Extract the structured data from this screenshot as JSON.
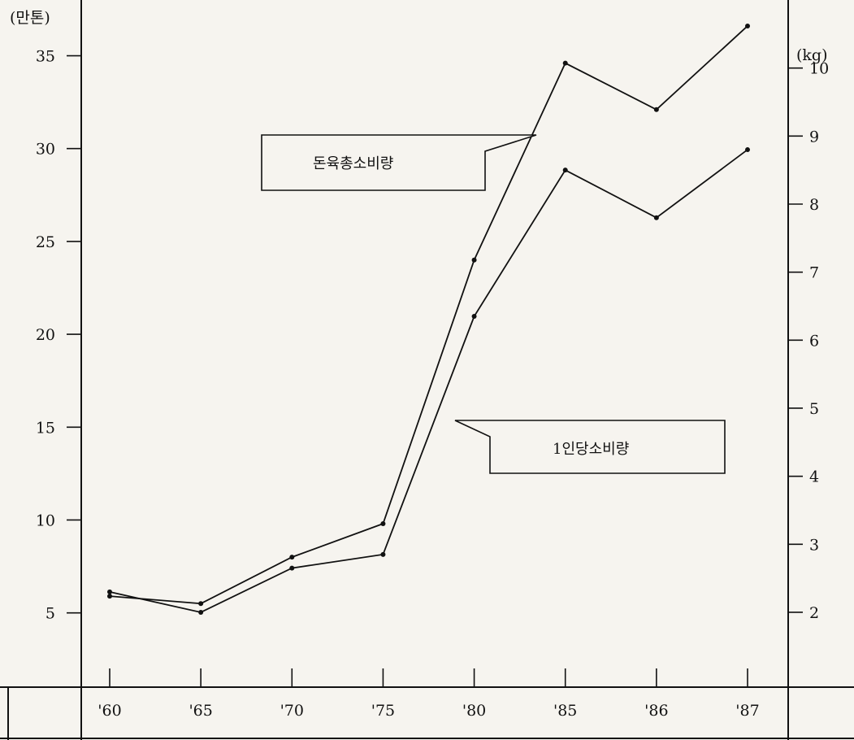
{
  "chart_data": {
    "type": "line",
    "categories": [
      "'60",
      "'65",
      "'70",
      "'75",
      "'80",
      "'85",
      "'86",
      "'87"
    ],
    "y_left": {
      "unit": "(만톤)",
      "ticks": [
        "5",
        "10",
        "15",
        "20",
        "25",
        "30",
        "35"
      ],
      "range": [
        1,
        38
      ]
    },
    "y_right": {
      "unit": "(kg)",
      "ticks": [
        "2",
        "3",
        "4",
        "5",
        "6",
        "7",
        "8",
        "9",
        "10"
      ],
      "range": [
        0.9,
        11
      ]
    },
    "series": [
      {
        "name": "돈육총소비량",
        "axis": "left",
        "values": [
          5.9,
          5.5,
          8.0,
          9.8,
          24.0,
          34.6,
          32.1,
          36.6
        ]
      },
      {
        "name": "1인당소비량",
        "axis": "right",
        "values": [
          2.3,
          2.0,
          2.65,
          2.85,
          6.35,
          8.5,
          7.8,
          8.8
        ]
      }
    ]
  }
}
